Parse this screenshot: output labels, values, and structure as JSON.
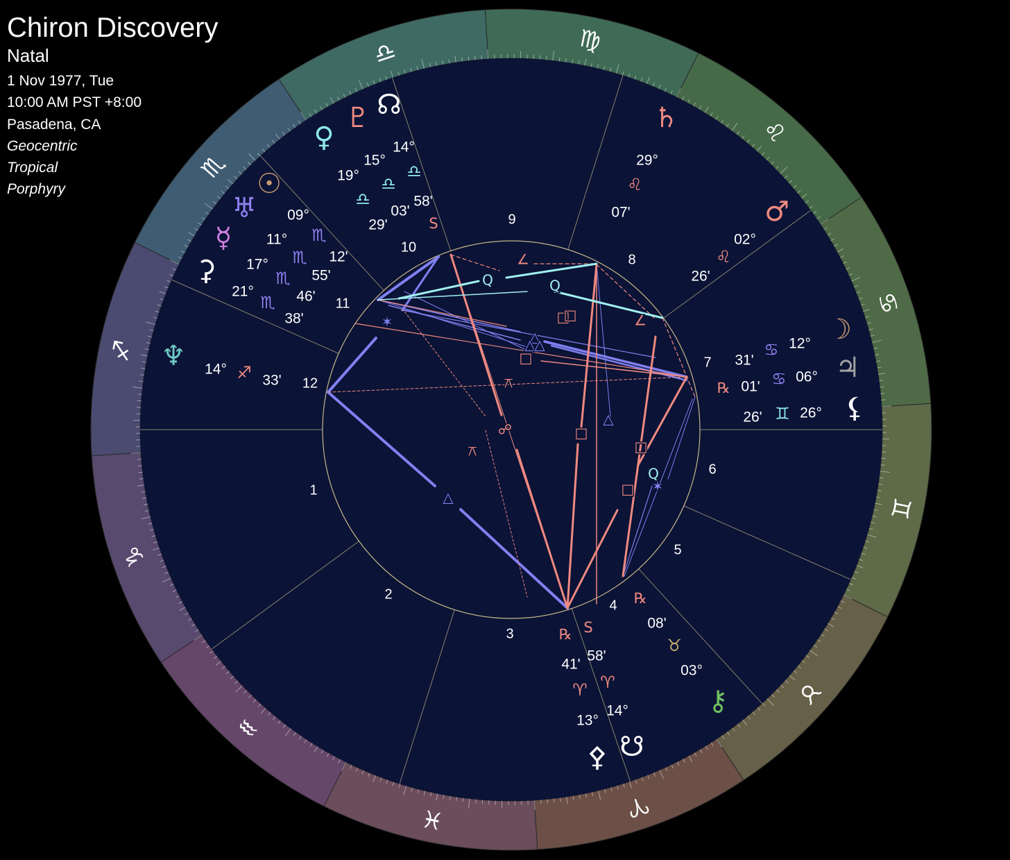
{
  "header": {
    "title": "Chiron Discovery",
    "subtitle": "Natal",
    "date": "1 Nov 1977, Tue",
    "time": "10:00 AM PST +8:00",
    "location": "Pasadena, CA",
    "settings": [
      "Geocentric",
      "Tropical",
      "Porphyry"
    ]
  },
  "zodiac": [
    {
      "glyph": "♈︎",
      "color": "#6c5048"
    },
    {
      "glyph": "♉︎",
      "color": "#666048"
    },
    {
      "glyph": "♊︎",
      "color": "#5e6a48"
    },
    {
      "glyph": "♋︎",
      "color": "#4e6a46"
    },
    {
      "glyph": "♌︎",
      "color": "#466a48"
    },
    {
      "glyph": "♍︎",
      "color": "#3f6a56"
    },
    {
      "glyph": "♎︎",
      "color": "#3f6a64"
    },
    {
      "glyph": "♏︎",
      "color": "#3f5c72"
    },
    {
      "glyph": "♐︎",
      "color": "#4b4a70"
    },
    {
      "glyph": "♑︎",
      "color": "#584a6e"
    },
    {
      "glyph": "♒︎",
      "color": "#65476a"
    },
    {
      "glyph": "♓︎",
      "color": "#6b4d5c"
    }
  ],
  "houses": [
    "1",
    "2",
    "3",
    "4",
    "5",
    "6",
    "7",
    "8",
    "9",
    "10",
    "11",
    "12"
  ],
  "points": [
    {
      "glyph": "☊",
      "color": "#ffffff",
      "degree": "14°",
      "sign": "♎︎",
      "sign_color": "#8fe8e8",
      "minutes": "58'",
      "flag": "S"
    },
    {
      "glyph": "♇",
      "color": "#f08a80",
      "degree": "15°",
      "sign": "♎︎",
      "sign_color": "#8fe8e8",
      "minutes": "03'"
    },
    {
      "glyph": "♀",
      "color": "#8fe8e8",
      "degree": "19°",
      "sign": "♎︎",
      "sign_color": "#8fe8e8",
      "minutes": "29'"
    },
    {
      "glyph": "☉",
      "color": "#c89a70",
      "degree": "09°",
      "sign": "♏︎",
      "sign_color": "#8f80f0",
      "minutes": "12'"
    },
    {
      "glyph": "♅",
      "color": "#8f80f0",
      "degree": "11°",
      "sign": "♏︎",
      "sign_color": "#8f80f0",
      "minutes": "55'"
    },
    {
      "glyph": "☿",
      "color": "#d080e0",
      "degree": "17°",
      "sign": "♏︎",
      "sign_color": "#8f80f0",
      "minutes": "46'"
    },
    {
      "glyph": "⚳",
      "color": "#ffffff",
      "degree": "21°",
      "sign": "♏︎",
      "sign_color": "#8f80f0",
      "minutes": "38'"
    },
    {
      "glyph": "♆",
      "color": "#6fc8c0",
      "degree": "14°",
      "sign": "♐︎",
      "sign_color": "#f08a80",
      "minutes": "33'"
    },
    {
      "glyph": "♄",
      "color": "#f08a80",
      "degree": "29°",
      "sign": "♌︎",
      "sign_color": "#f08a80",
      "minutes": "07'"
    },
    {
      "glyph": "♂",
      "color": "#f08a80",
      "degree": "02°",
      "sign": "♌︎",
      "sign_color": "#f08a80",
      "minutes": "26'"
    },
    {
      "glyph": "☽",
      "color": "#c89a70",
      "degree": "12°",
      "sign": "♋︎",
      "sign_color": "#8f80f0",
      "minutes": "31'"
    },
    {
      "glyph": "♃",
      "color": "#a0a0a0",
      "degree": "06°",
      "sign": "♋︎",
      "sign_color": "#8f80f0",
      "minutes": "01'",
      "flag": "℞"
    },
    {
      "glyph": "⚸",
      "color": "#ffffff",
      "degree": "26°",
      "sign": "♊︎",
      "sign_color": "#8fe8e8",
      "minutes": "26'"
    },
    {
      "glyph": "⚷",
      "color": "#70c060",
      "degree": "03°",
      "sign": "♉︎",
      "sign_color": "#c8b070",
      "minutes": "08'",
      "flag": "℞"
    },
    {
      "glyph": "☋",
      "color": "#ffffff",
      "degree": "14°",
      "sign": "♈︎",
      "sign_color": "#f08a80",
      "minutes": "58'",
      "flag": "S"
    },
    {
      "glyph": "⚴",
      "color": "#ffffff",
      "degree": "13°",
      "sign": "♈︎",
      "sign_color": "#f08a80",
      "minutes": "41'",
      "flag": "℞"
    }
  ],
  "aspects": [
    {
      "glyph": "∠",
      "color": "#f08a80"
    },
    {
      "glyph": "Q",
      "color": "#a0f0f0"
    },
    {
      "glyph": "Q",
      "color": "#a0f0f0"
    },
    {
      "glyph": "□",
      "color": "#f08a80"
    },
    {
      "glyph": "□",
      "color": "#f08a80"
    },
    {
      "glyph": "∠",
      "color": "#f08a80"
    },
    {
      "glyph": "✶",
      "color": "#8080f0"
    },
    {
      "glyph": "△",
      "color": "#8080f0"
    },
    {
      "glyph": "△",
      "color": "#8080f0"
    },
    {
      "glyph": "△",
      "color": "#8080f0"
    },
    {
      "glyph": "□",
      "color": "#f08a80"
    },
    {
      "glyph": "⚻",
      "color": "#f08a80"
    },
    {
      "glyph": "☍",
      "color": "#f08a80"
    },
    {
      "glyph": "⚻",
      "color": "#f08a80"
    },
    {
      "glyph": "□",
      "color": "#f08a80"
    },
    {
      "glyph": "△",
      "color": "#8080f0"
    },
    {
      "glyph": "□",
      "color": "#f08a80"
    },
    {
      "glyph": "Q",
      "color": "#a0f0f0"
    },
    {
      "glyph": "✶",
      "color": "#8080f0"
    },
    {
      "glyph": "□",
      "color": "#f08a80"
    },
    {
      "glyph": "△",
      "color": "#8080f0"
    }
  ]
}
